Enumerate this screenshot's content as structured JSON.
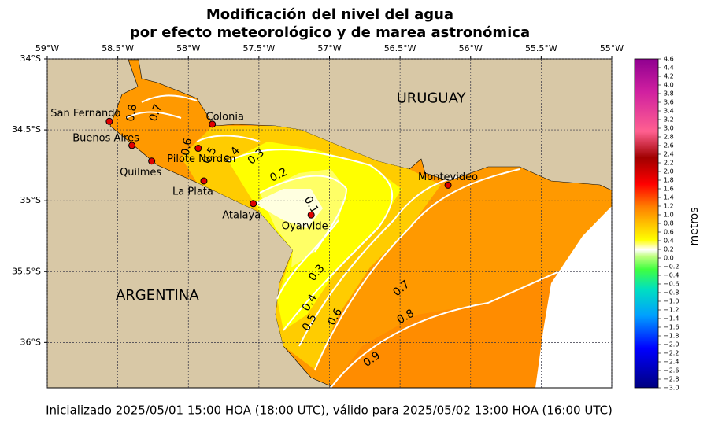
{
  "title": [
    "Modificación del nivel del agua",
    "por efecto meteorológico y de marea astronómica"
  ],
  "map": {
    "xlim": [
      -59,
      -55
    ],
    "ylim": [
      -36.32,
      -34
    ],
    "xticks": [
      {
        "value": -59,
        "label": "59°W"
      },
      {
        "value": -58.5,
        "label": "58.5°W"
      },
      {
        "value": -58,
        "label": "58°W"
      },
      {
        "value": -57.5,
        "label": "57.5°W"
      },
      {
        "value": -57,
        "label": "57°W"
      },
      {
        "value": -56.5,
        "label": "56.5°W"
      },
      {
        "value": -56,
        "label": "56°W"
      },
      {
        "value": -55.5,
        "label": "55.5°W"
      },
      {
        "value": -55,
        "label": "55°W"
      }
    ],
    "yticks": [
      {
        "value": -34,
        "label": "34°S"
      },
      {
        "value": -34.5,
        "label": "34.5°S"
      },
      {
        "value": -35,
        "label": "35°S"
      },
      {
        "value": -35.5,
        "label": "35.5°S"
      },
      {
        "value": -36,
        "label": "36°S"
      }
    ],
    "regions": [
      {
        "label": "URUGUAY",
        "lon": -56.28,
        "lat": -34.28
      },
      {
        "label": "ARGENTINA",
        "lon": -58.22,
        "lat": -35.67
      }
    ],
    "stations": [
      {
        "name": "San Fernando",
        "lon": -58.56,
        "lat": -34.44
      },
      {
        "name": "Buenos Aires",
        "lon": -58.4,
        "lat": -34.61
      },
      {
        "name": "Quilmes",
        "lon": -58.26,
        "lat": -34.72
      },
      {
        "name": "Pilote Norden",
        "lon": -57.93,
        "lat": -34.63
      },
      {
        "name": "Colonia",
        "lon": -57.83,
        "lat": -34.46
      },
      {
        "name": "La Plata",
        "lon": -57.89,
        "lat": -34.86
      },
      {
        "name": "Atalaya",
        "lon": -57.54,
        "lat": -35.02
      },
      {
        "name": "Oyarvide",
        "lon": -57.13,
        "lat": -35.1
      },
      {
        "name": "Montevideo",
        "lon": -56.16,
        "lat": -34.89
      }
    ],
    "contour_labels": [
      {
        "level": 0.8,
        "lon": -58.4,
        "lat": -34.38
      },
      {
        "level": 0.7,
        "lon": -58.23,
        "lat": -34.38
      },
      {
        "level": 0.6,
        "lon": -58.01,
        "lat": -34.62
      },
      {
        "level": 0.5,
        "lon": -57.85,
        "lat": -34.68
      },
      {
        "level": 0.4,
        "lon": -57.69,
        "lat": -34.68
      },
      {
        "level": 0.3,
        "lon": -57.52,
        "lat": -34.69
      },
      {
        "level": 0.2,
        "lon": -57.36,
        "lat": -34.82
      },
      {
        "level": 0.1,
        "lon": -57.13,
        "lat": -35.03
      },
      {
        "level": 0.3,
        "lon": -57.09,
        "lat": -35.51
      },
      {
        "level": 0.4,
        "lon": -57.14,
        "lat": -35.72
      },
      {
        "level": 0.5,
        "lon": -57.14,
        "lat": -35.86
      },
      {
        "level": 0.6,
        "lon": -56.96,
        "lat": -35.82
      },
      {
        "level": 0.7,
        "lon": -56.49,
        "lat": -35.62
      },
      {
        "level": 0.8,
        "lon": -56.46,
        "lat": -35.82
      },
      {
        "level": 0.9,
        "lon": -56.7,
        "lat": -36.12
      }
    ]
  },
  "colorbar": {
    "label": "metros",
    "lim": [
      -3.0,
      4.6
    ],
    "ticks": [
      4.6,
      4.4,
      4.2,
      {
        "value": 4.0,
        "label": "4.0"
      },
      3.8,
      3.6,
      3.4,
      3.2,
      {
        "value": 3.0,
        "label": "3.0"
      },
      2.8,
      2.6,
      2.4,
      2.2,
      {
        "value": 2.0,
        "label": "2.0"
      },
      1.8,
      1.6,
      1.4,
      1.2,
      {
        "value": 1.0,
        "label": "1.0"
      },
      0.8,
      0.6,
      0.4,
      0.2,
      {
        "value": 0.0,
        "label": "0.0"
      },
      {
        "value": -0.2,
        "label": "−0.2"
      },
      {
        "value": -0.4,
        "label": "−0.4"
      },
      {
        "value": -0.6,
        "label": "−0.6"
      },
      {
        "value": -0.8,
        "label": "−0.8"
      },
      {
        "value": -1.0,
        "label": "−1.0"
      },
      {
        "value": -1.2,
        "label": "−1.2"
      },
      {
        "value": -1.4,
        "label": "−1.4"
      },
      {
        "value": -1.6,
        "label": "−1.6"
      },
      {
        "value": -1.8,
        "label": "−1.8"
      },
      {
        "value": -2.0,
        "label": "−2.0"
      },
      {
        "value": -2.2,
        "label": "−2.2"
      },
      {
        "value": -2.4,
        "label": "−2.4"
      },
      {
        "value": -2.6,
        "label": "−2.6"
      },
      {
        "value": -2.8,
        "label": "−2.8"
      },
      {
        "value": -3.0,
        "label": "−3.0"
      }
    ]
  },
  "footer": "Inicializado 2025/05/01 15:00 HOA (18:00 UTC), válido para 2025/05/02 13:00 HOA (16:00 UTC)"
}
